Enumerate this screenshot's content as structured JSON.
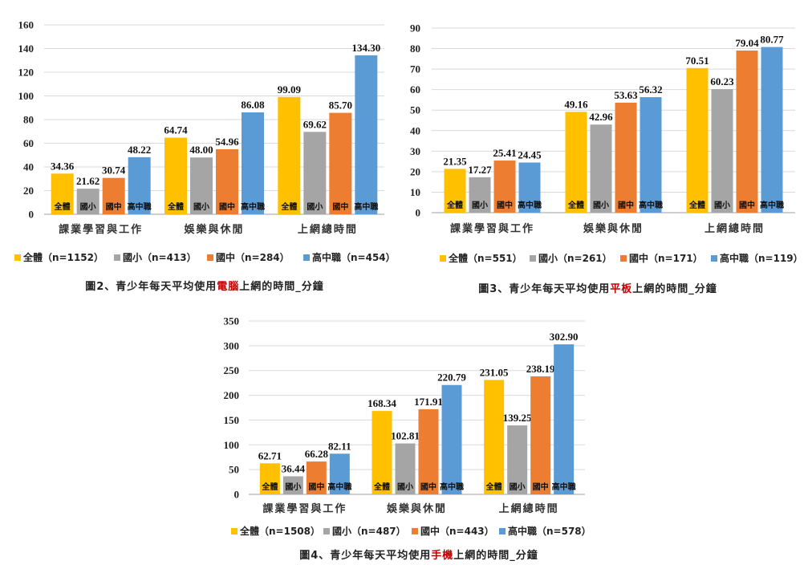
{
  "colors": {
    "全體": "#ffc000",
    "國小": "#a5a5a5",
    "國中": "#ed7d31",
    "高中職": "#5b9bd5",
    "highlight": "#c00000"
  },
  "chart_data": [
    {
      "type": "bar",
      "title": "圖2、青少年每天平均使用電腦上網的時間_分鐘",
      "caption_parts": [
        "圖2、青少年每天平均使用",
        "電腦",
        "上網的時間_分鐘"
      ],
      "xlabel": "",
      "ylabel": "",
      "categories": [
        "課業學習與工作",
        "娛樂與休閒",
        "上網總時間"
      ],
      "ylim": [
        0,
        160
      ],
      "yticks": [
        0,
        20,
        40,
        60,
        80,
        100,
        120,
        140,
        160
      ],
      "grid": true,
      "legend_position": "bottom",
      "series": [
        {
          "name": "全體",
          "legend": "全體（n=1152）",
          "values": [
            34.36,
            64.74,
            99.09
          ]
        },
        {
          "name": "國小",
          "legend": "國小（n=413）",
          "values": [
            21.62,
            48.0,
            69.62
          ]
        },
        {
          "name": "國中",
          "legend": "國中（n=284）",
          "values": [
            30.74,
            54.96,
            85.7
          ]
        },
        {
          "name": "高中職",
          "legend": "高中職（n=454）",
          "values": [
            48.22,
            86.08,
            134.3
          ]
        }
      ],
      "data_labels": [
        [
          "34.36",
          "64.74",
          "99.09"
        ],
        [
          "21.62",
          "48.00",
          "69.62"
        ],
        [
          "30.74",
          "54.96",
          "85.70"
        ],
        [
          "48.22",
          "86.08",
          "134.30"
        ]
      ]
    },
    {
      "type": "bar",
      "title": "圖3、青少年每天平均使用平板上網的時間_分鐘",
      "caption_parts": [
        "圖3、青少年每天平均使用",
        "平板",
        "上網的時間_分鐘"
      ],
      "xlabel": "",
      "ylabel": "",
      "categories": [
        "課業學習與工作",
        "娛樂與休閒",
        "上網總時間"
      ],
      "ylim": [
        0,
        90
      ],
      "yticks": [
        0,
        10,
        20,
        30,
        40,
        50,
        60,
        70,
        80,
        90
      ],
      "grid": true,
      "legend_position": "bottom",
      "series": [
        {
          "name": "全體",
          "legend": "全體（n=551）",
          "values": [
            21.35,
            49.16,
            70.51
          ]
        },
        {
          "name": "國小",
          "legend": "國小（n=261）",
          "values": [
            17.27,
            42.96,
            60.23
          ]
        },
        {
          "name": "國中",
          "legend": "國中（n=171）",
          "values": [
            25.41,
            53.63,
            79.04
          ]
        },
        {
          "name": "高中職",
          "legend": "高中職（n=119）",
          "values": [
            24.45,
            56.32,
            80.77
          ]
        }
      ],
      "data_labels": [
        [
          "21.35",
          "49.16",
          "70.51"
        ],
        [
          "17.27",
          "42.96",
          "60.23"
        ],
        [
          "25.41",
          "53.63",
          "79.04"
        ],
        [
          "24.45",
          "56.32",
          "80.77"
        ]
      ]
    },
    {
      "type": "bar",
      "title": "圖4、青少年每天平均使用手機上網的時間_分鐘",
      "caption_parts": [
        "圖4、青少年每天平均使用",
        "手機",
        "上網的時間_分鐘"
      ],
      "xlabel": "",
      "ylabel": "",
      "categories": [
        "課業學習與工作",
        "娛樂與休閒",
        "上網總時間"
      ],
      "ylim": [
        0,
        350
      ],
      "yticks": [
        0,
        50,
        100,
        150,
        200,
        250,
        300,
        350
      ],
      "grid": true,
      "legend_position": "bottom",
      "series": [
        {
          "name": "全體",
          "legend": "全體（n=1508）",
          "values": [
            62.71,
            168.34,
            231.05
          ]
        },
        {
          "name": "國小",
          "legend": "國小（n=487）",
          "values": [
            36.44,
            102.81,
            139.25
          ]
        },
        {
          "name": "國中",
          "legend": "國中（n=443）",
          "values": [
            66.28,
            171.91,
            238.19
          ]
        },
        {
          "name": "高中職",
          "legend": "高中職（n=578）",
          "values": [
            82.11,
            220.79,
            302.9
          ]
        }
      ],
      "data_labels": [
        [
          "62.71",
          "168.34",
          "231.05"
        ],
        [
          "36.44",
          "102.81",
          "139.25"
        ],
        [
          "66.28",
          "171.91",
          "238.19"
        ],
        [
          "82.11",
          "220.79",
          "302.90"
        ]
      ]
    }
  ]
}
